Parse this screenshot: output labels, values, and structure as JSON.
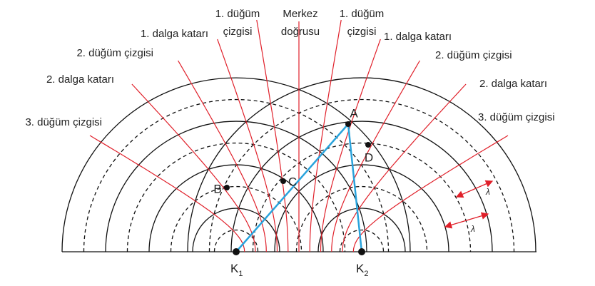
{
  "center_line": {
    "label": [
      "Merkez",
      "doğrusu"
    ]
  },
  "left_lines": [
    {
      "label": [
        "1. düğüm",
        "çizgisi"
      ]
    },
    {
      "label": [
        "1. dalga katarı"
      ]
    },
    {
      "label": [
        "2. düğüm çizgisi"
      ]
    },
    {
      "label": [
        "2. dalga katarı"
      ]
    },
    {
      "label": [
        "3. düğüm çizgisi"
      ]
    }
  ],
  "right_lines": [
    {
      "label": [
        "1. düğüm",
        "çizgisi"
      ]
    },
    {
      "label": [
        "1. dalga katarı"
      ]
    },
    {
      "label": [
        "2. düğüm çizgisi"
      ]
    },
    {
      "label": [
        "2. dalga katarı"
      ]
    },
    {
      "label": [
        "3. düğüm çizgisi"
      ]
    }
  ],
  "points": [
    "A",
    "B",
    "C",
    "D"
  ],
  "sources": [
    {
      "label": "K",
      "subscript": "1"
    },
    {
      "label": "K",
      "subscript": "2"
    }
  ],
  "wavelength_labels": [
    "λ",
    "λ"
  ]
}
